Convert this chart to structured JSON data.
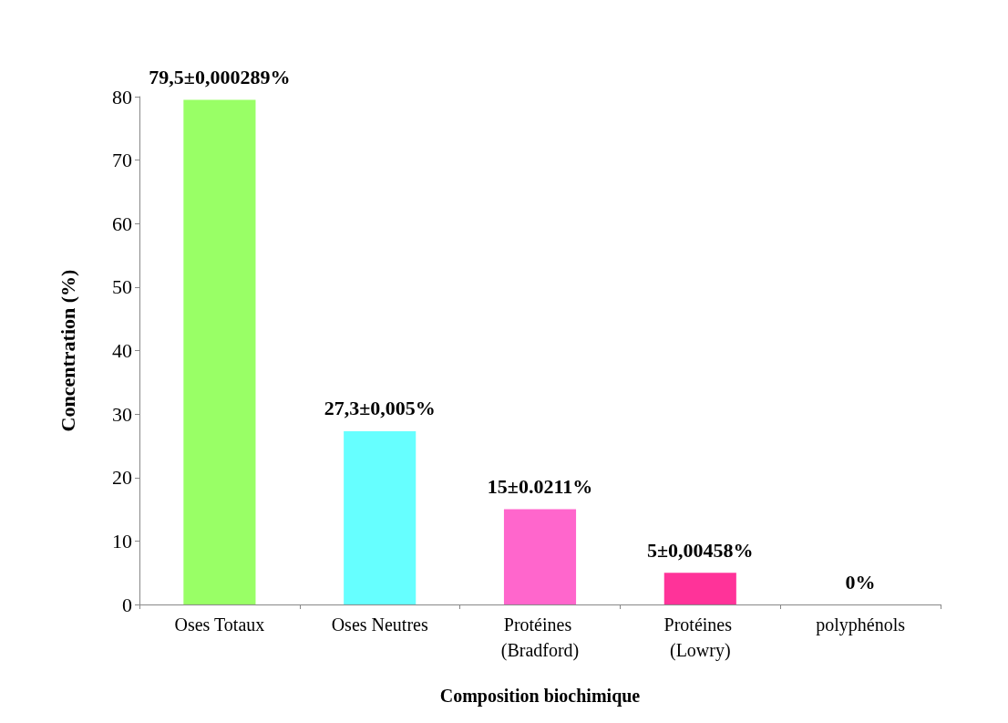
{
  "chart_data": {
    "type": "bar",
    "xlabel": "Composition biochimique",
    "ylabel": "Concentration (%)",
    "categories": [
      "Oses Totaux",
      "Oses Neutres",
      "Protéines (Bradford)",
      "Protéines (Lowry)",
      "polyphénols"
    ],
    "values": [
      79.5,
      27.3,
      15,
      5,
      0
    ],
    "colors": [
      "#99ff66",
      "#66ffff",
      "#ff66cc",
      "#ff3399",
      "#7b2a2a"
    ],
    "value_labels": [
      "79,5±0,000289%",
      "27,3±0,005%",
      "15±0.0211%",
      "5±0,00458%",
      "0%"
    ],
    "ylim": [
      0,
      80
    ],
    "yticks": [
      0,
      10,
      20,
      30,
      40,
      50,
      60,
      70,
      80
    ],
    "grid": false
  }
}
